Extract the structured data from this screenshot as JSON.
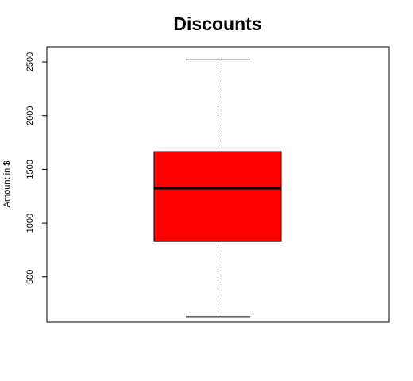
{
  "chart_data": {
    "type": "boxplot",
    "title": "Discounts",
    "xlabel": "",
    "ylabel": "Amount in $",
    "ylim": [
      0,
      2600
    ],
    "yticks": [
      500,
      1000,
      1500,
      2000,
      2500
    ],
    "grid": false,
    "legend": "none",
    "box": {
      "min": 130,
      "q1": 830,
      "median": 1325,
      "q3": 1665,
      "max": 2520
    },
    "colors": {
      "box_fill": "#ff0000",
      "median_line": "#000000",
      "whisker": "#000000"
    }
  }
}
